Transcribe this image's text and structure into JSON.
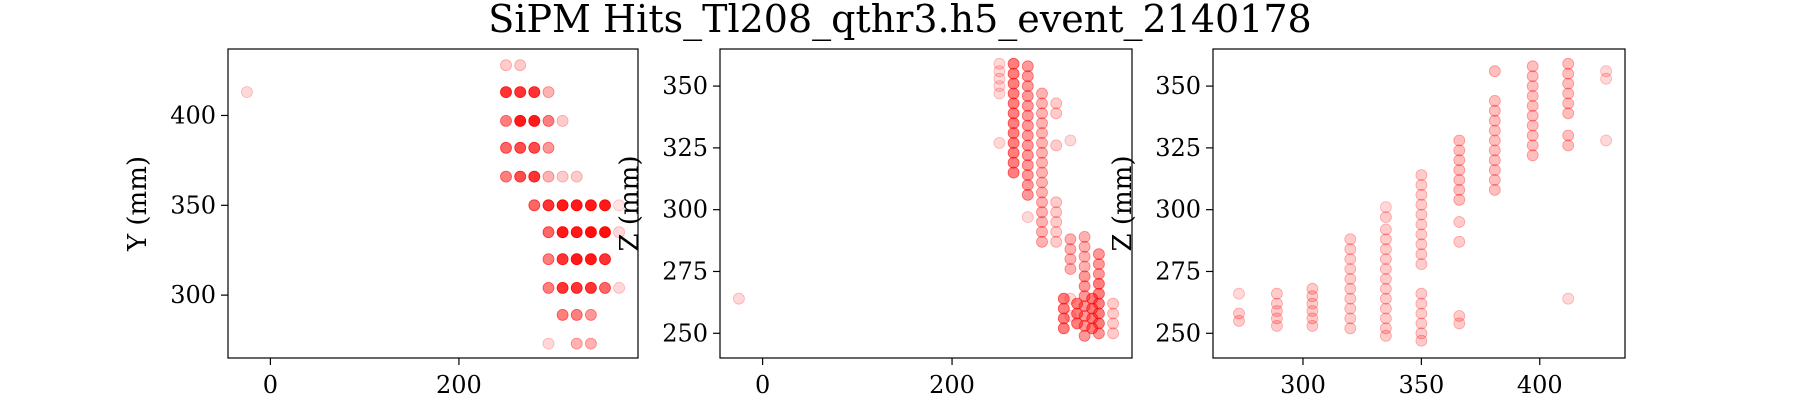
{
  "suptitle": "SiPM Hits_Tl208_qthr3.h5_event_2140178",
  "colors": {
    "marker": "#ff0000",
    "axis": "#000000",
    "background": "#ffffff"
  },
  "chart_data": [
    {
      "type": "scatter",
      "ylabel": "Y (mm)",
      "xlim": [
        -45,
        390
      ],
      "ylim": [
        265,
        437
      ],
      "xticks": [
        0,
        200
      ],
      "yticks": [
        300,
        350,
        400
      ],
      "marker_color": "#ff0000",
      "grid": false,
      "points": [
        [
          -25,
          413,
          0.15
        ],
        [
          250,
          428,
          0.2
        ],
        [
          265,
          428,
          0.2
        ],
        [
          250,
          413,
          0.8
        ],
        [
          265,
          413,
          0.8
        ],
        [
          280,
          413,
          0.8
        ],
        [
          295,
          413,
          0.3
        ],
        [
          250,
          397,
          0.5
        ],
        [
          265,
          397,
          0.9
        ],
        [
          280,
          397,
          0.9
        ],
        [
          295,
          397,
          0.5
        ],
        [
          310,
          397,
          0.2
        ],
        [
          250,
          382,
          0.6
        ],
        [
          265,
          382,
          0.7
        ],
        [
          280,
          382,
          0.7
        ],
        [
          295,
          382,
          0.4
        ],
        [
          250,
          366,
          0.5
        ],
        [
          265,
          366,
          0.7
        ],
        [
          280,
          366,
          0.8
        ],
        [
          295,
          366,
          0.3
        ],
        [
          310,
          366,
          0.2
        ],
        [
          325,
          366,
          0.2
        ],
        [
          280,
          350,
          0.6
        ],
        [
          295,
          350,
          0.8
        ],
        [
          310,
          350,
          0.9
        ],
        [
          325,
          350,
          0.9
        ],
        [
          340,
          350,
          0.9
        ],
        [
          355,
          350,
          0.9
        ],
        [
          370,
          350,
          0.1
        ],
        [
          295,
          335,
          0.6
        ],
        [
          310,
          335,
          0.9
        ],
        [
          325,
          335,
          0.9
        ],
        [
          340,
          335,
          0.95
        ],
        [
          355,
          335,
          0.95
        ],
        [
          370,
          335,
          0.15
        ],
        [
          295,
          320,
          0.5
        ],
        [
          310,
          320,
          0.8
        ],
        [
          325,
          320,
          0.9
        ],
        [
          340,
          320,
          0.9
        ],
        [
          355,
          320,
          0.8
        ],
        [
          295,
          304,
          0.5
        ],
        [
          310,
          304,
          0.8
        ],
        [
          325,
          304,
          0.8
        ],
        [
          340,
          304,
          0.8
        ],
        [
          355,
          304,
          0.6
        ],
        [
          370,
          304,
          0.15
        ],
        [
          310,
          289,
          0.5
        ],
        [
          325,
          289,
          0.5
        ],
        [
          340,
          289,
          0.4
        ],
        [
          295,
          273,
          0.15
        ],
        [
          325,
          273,
          0.3
        ],
        [
          340,
          273,
          0.3
        ]
      ]
    },
    {
      "type": "scatter",
      "ylabel": "Z (mm)",
      "xlim": [
        -45,
        390
      ],
      "ylim": [
        240,
        365
      ],
      "xticks": [
        0,
        200
      ],
      "yticks": [
        250,
        275,
        300,
        325,
        350
      ],
      "marker_color": "#ff0000",
      "grid": false,
      "points": [
        [
          -25,
          264,
          0.15
        ],
        [
          250,
          359,
          0.15
        ],
        [
          250,
          356,
          0.15
        ],
        [
          250,
          353,
          0.15
        ],
        [
          250,
          350,
          0.15
        ],
        [
          250,
          347,
          0.15
        ],
        [
          250,
          327,
          0.15
        ],
        [
          265,
          359,
          0.5
        ],
        [
          265,
          355,
          0.5
        ],
        [
          265,
          351,
          0.5
        ],
        [
          265,
          347,
          0.5
        ],
        [
          265,
          343,
          0.5
        ],
        [
          265,
          339,
          0.5
        ],
        [
          265,
          335,
          0.5
        ],
        [
          265,
          331,
          0.5
        ],
        [
          265,
          327,
          0.5
        ],
        [
          265,
          323,
          0.5
        ],
        [
          265,
          319,
          0.5
        ],
        [
          265,
          315,
          0.5
        ],
        [
          280,
          358,
          0.4
        ],
        [
          280,
          354,
          0.4
        ],
        [
          280,
          350,
          0.4
        ],
        [
          280,
          346,
          0.4
        ],
        [
          280,
          342,
          0.4
        ],
        [
          280,
          338,
          0.4
        ],
        [
          280,
          334,
          0.4
        ],
        [
          280,
          330,
          0.4
        ],
        [
          280,
          326,
          0.4
        ],
        [
          280,
          322,
          0.4
        ],
        [
          280,
          318,
          0.4
        ],
        [
          280,
          314,
          0.4
        ],
        [
          280,
          310,
          0.4
        ],
        [
          280,
          306,
          0.4
        ],
        [
          280,
          297,
          0.15
        ],
        [
          295,
          347,
          0.3
        ],
        [
          295,
          343,
          0.3
        ],
        [
          295,
          339,
          0.3
        ],
        [
          295,
          335,
          0.3
        ],
        [
          295,
          331,
          0.3
        ],
        [
          295,
          327,
          0.3
        ],
        [
          295,
          323,
          0.3
        ],
        [
          295,
          319,
          0.3
        ],
        [
          295,
          315,
          0.3
        ],
        [
          295,
          311,
          0.3
        ],
        [
          295,
          307,
          0.3
        ],
        [
          295,
          303,
          0.3
        ],
        [
          295,
          299,
          0.3
        ],
        [
          295,
          295,
          0.3
        ],
        [
          295,
          291,
          0.3
        ],
        [
          295,
          287,
          0.3
        ],
        [
          310,
          343,
          0.2
        ],
        [
          310,
          339,
          0.2
        ],
        [
          310,
          326,
          0.2
        ],
        [
          310,
          303,
          0.2
        ],
        [
          310,
          299,
          0.2
        ],
        [
          310,
          295,
          0.2
        ],
        [
          310,
          291,
          0.2
        ],
        [
          310,
          287,
          0.2
        ],
        [
          325,
          328,
          0.15
        ],
        [
          325,
          288,
          0.3
        ],
        [
          325,
          284,
          0.3
        ],
        [
          325,
          280,
          0.3
        ],
        [
          325,
          276,
          0.3
        ],
        [
          325,
          264,
          0.15
        ],
        [
          325,
          257,
          0.15
        ],
        [
          340,
          289,
          0.3
        ],
        [
          340,
          285,
          0.3
        ],
        [
          340,
          281,
          0.3
        ],
        [
          340,
          277,
          0.3
        ],
        [
          340,
          273,
          0.4
        ],
        [
          340,
          269,
          0.4
        ],
        [
          340,
          265,
          0.4
        ],
        [
          340,
          261,
          0.4
        ],
        [
          340,
          257,
          0.4
        ],
        [
          340,
          253,
          0.4
        ],
        [
          340,
          249,
          0.4
        ],
        [
          355,
          282,
          0.4
        ],
        [
          355,
          278,
          0.4
        ],
        [
          355,
          274,
          0.4
        ],
        [
          355,
          270,
          0.5
        ],
        [
          355,
          266,
          0.5
        ],
        [
          355,
          262,
          0.5
        ],
        [
          355,
          258,
          0.5
        ],
        [
          355,
          254,
          0.5
        ],
        [
          355,
          250,
          0.4
        ],
        [
          370,
          262,
          0.2
        ],
        [
          370,
          258,
          0.2
        ],
        [
          370,
          254,
          0.2
        ],
        [
          370,
          250,
          0.2
        ],
        [
          318,
          264,
          0.5
        ],
        [
          318,
          260,
          0.5
        ],
        [
          318,
          256,
          0.5
        ],
        [
          318,
          252,
          0.5
        ],
        [
          332,
          262,
          0.5
        ],
        [
          332,
          258,
          0.5
        ],
        [
          332,
          254,
          0.5
        ],
        [
          348,
          264,
          0.5
        ],
        [
          348,
          260,
          0.5
        ],
        [
          348,
          256,
          0.5
        ],
        [
          348,
          252,
          0.5
        ]
      ]
    },
    {
      "type": "scatter",
      "ylabel": "Z (mm)",
      "xlim": [
        262,
        436
      ],
      "ylim": [
        240,
        365
      ],
      "xticks": [
        300,
        350,
        400
      ],
      "yticks": [
        250,
        275,
        300,
        325,
        350
      ],
      "marker_color": "#ff0000",
      "grid": false,
      "points": [
        [
          273,
          266,
          0.15
        ],
        [
          273,
          258,
          0.2
        ],
        [
          273,
          255,
          0.2
        ],
        [
          289,
          266,
          0.2
        ],
        [
          289,
          262,
          0.2
        ],
        [
          289,
          259,
          0.2
        ],
        [
          289,
          256,
          0.2
        ],
        [
          289,
          253,
          0.2
        ],
        [
          304,
          268,
          0.2
        ],
        [
          304,
          265,
          0.2
        ],
        [
          304,
          262,
          0.2
        ],
        [
          304,
          259,
          0.2
        ],
        [
          304,
          256,
          0.2
        ],
        [
          304,
          253,
          0.2
        ],
        [
          320,
          288,
          0.2
        ],
        [
          320,
          284,
          0.2
        ],
        [
          320,
          280,
          0.2
        ],
        [
          320,
          276,
          0.2
        ],
        [
          320,
          272,
          0.2
        ],
        [
          320,
          268,
          0.2
        ],
        [
          320,
          264,
          0.2
        ],
        [
          320,
          260,
          0.2
        ],
        [
          320,
          256,
          0.2
        ],
        [
          320,
          252,
          0.2
        ],
        [
          335,
          301,
          0.15
        ],
        [
          335,
          297,
          0.2
        ],
        [
          335,
          292,
          0.2
        ],
        [
          335,
          288,
          0.2
        ],
        [
          335,
          284,
          0.2
        ],
        [
          335,
          280,
          0.2
        ],
        [
          335,
          276,
          0.2
        ],
        [
          335,
          272,
          0.2
        ],
        [
          335,
          268,
          0.2
        ],
        [
          335,
          264,
          0.2
        ],
        [
          335,
          260,
          0.2
        ],
        [
          335,
          256,
          0.2
        ],
        [
          335,
          252,
          0.2
        ],
        [
          335,
          249,
          0.2
        ],
        [
          350,
          314,
          0.2
        ],
        [
          350,
          310,
          0.2
        ],
        [
          350,
          306,
          0.2
        ],
        [
          350,
          302,
          0.2
        ],
        [
          350,
          298,
          0.2
        ],
        [
          350,
          294,
          0.2
        ],
        [
          350,
          290,
          0.2
        ],
        [
          350,
          286,
          0.2
        ],
        [
          350,
          282,
          0.2
        ],
        [
          350,
          278,
          0.2
        ],
        [
          350,
          266,
          0.2
        ],
        [
          350,
          262,
          0.2
        ],
        [
          350,
          258,
          0.2
        ],
        [
          350,
          254,
          0.2
        ],
        [
          350,
          250,
          0.2
        ],
        [
          350,
          247,
          0.2
        ],
        [
          366,
          328,
          0.25
        ],
        [
          366,
          324,
          0.25
        ],
        [
          366,
          320,
          0.25
        ],
        [
          366,
          316,
          0.25
        ],
        [
          366,
          312,
          0.25
        ],
        [
          366,
          308,
          0.25
        ],
        [
          366,
          304,
          0.25
        ],
        [
          366,
          295,
          0.2
        ],
        [
          366,
          287,
          0.2
        ],
        [
          366,
          257,
          0.2
        ],
        [
          366,
          254,
          0.2
        ],
        [
          381,
          356,
          0.25
        ],
        [
          381,
          344,
          0.25
        ],
        [
          381,
          340,
          0.25
        ],
        [
          381,
          336,
          0.25
        ],
        [
          381,
          332,
          0.25
        ],
        [
          381,
          328,
          0.25
        ],
        [
          381,
          324,
          0.25
        ],
        [
          381,
          320,
          0.25
        ],
        [
          381,
          316,
          0.25
        ],
        [
          381,
          312,
          0.25
        ],
        [
          381,
          308,
          0.25
        ],
        [
          397,
          358,
          0.25
        ],
        [
          397,
          354,
          0.25
        ],
        [
          397,
          350,
          0.25
        ],
        [
          397,
          346,
          0.25
        ],
        [
          397,
          342,
          0.25
        ],
        [
          397,
          338,
          0.25
        ],
        [
          397,
          334,
          0.25
        ],
        [
          397,
          330,
          0.25
        ],
        [
          397,
          326,
          0.25
        ],
        [
          397,
          322,
          0.25
        ],
        [
          412,
          359,
          0.25
        ],
        [
          412,
          355,
          0.25
        ],
        [
          412,
          351,
          0.25
        ],
        [
          412,
          347,
          0.25
        ],
        [
          412,
          343,
          0.25
        ],
        [
          412,
          339,
          0.25
        ],
        [
          412,
          330,
          0.25
        ],
        [
          412,
          326,
          0.25
        ],
        [
          412,
          264,
          0.15
        ],
        [
          428,
          356,
          0.15
        ],
        [
          428,
          353,
          0.15
        ],
        [
          428,
          328,
          0.15
        ]
      ]
    }
  ]
}
